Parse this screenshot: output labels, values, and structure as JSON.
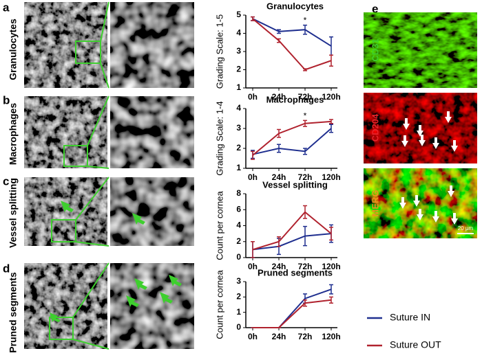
{
  "figure": {
    "panel_letters": [
      "a",
      "b",
      "c",
      "d",
      "e"
    ],
    "row_labels": [
      "Granulocytes",
      "Macrophages",
      "Vessel splitting",
      "Pruned segments"
    ],
    "stain_labels": [
      "CD31",
      "CD204",
      "MERG"
    ],
    "scale_bar": "20 µm"
  },
  "chart_data": [
    {
      "type": "line",
      "title": "Granulocytes",
      "y_label": "Grading Scale: 1-5",
      "categories": [
        "0h",
        "24h",
        "72h",
        "120h"
      ],
      "ylim": [
        1,
        5
      ],
      "yticks": [
        1,
        2,
        3,
        4,
        5
      ],
      "annotations": [
        {
          "text": "*",
          "x": "72h"
        }
      ],
      "series": [
        {
          "name": "Suture IN",
          "color": "#1f2f8f",
          "values": [
            4.8,
            4.1,
            4.2,
            3.3
          ],
          "errors": [
            0.1,
            0.1,
            0.25,
            0.5
          ]
        },
        {
          "name": "Suture OUT",
          "color": "#b0222e",
          "values": [
            4.8,
            3.6,
            2.0,
            2.5
          ],
          "errors": [
            0.1,
            0.1,
            0.05,
            0.3
          ]
        }
      ]
    },
    {
      "type": "line",
      "title": "Macrophages",
      "y_label": "Grading Scale: 1-4",
      "categories": [
        "0h",
        "24h",
        "72h",
        "120h"
      ],
      "ylim": [
        1,
        4
      ],
      "yticks": [
        1,
        2,
        3,
        4
      ],
      "annotations": [
        {
          "text": "*",
          "x": "72h"
        }
      ],
      "series": [
        {
          "name": "Suture IN",
          "color": "#1f2f8f",
          "values": [
            1.7,
            2.0,
            1.85,
            3.0
          ],
          "errors": [
            0.2,
            0.2,
            0.15,
            0.2
          ]
        },
        {
          "name": "Suture OUT",
          "color": "#b0222e",
          "values": [
            1.65,
            2.75,
            3.25,
            3.35
          ],
          "errors": [
            0.2,
            0.2,
            0.15,
            0.1
          ]
        }
      ]
    },
    {
      "type": "line",
      "title": "Vessel splitting",
      "y_label": "Count per cornea",
      "categories": [
        "0h",
        "24h",
        "72h",
        "120h"
      ],
      "ylim": [
        0,
        8
      ],
      "yticks": [
        0,
        2,
        4,
        6,
        8
      ],
      "series": [
        {
          "name": "Suture IN",
          "color": "#1f2f8f",
          "values": [
            1,
            1.4,
            2.7,
            3.0
          ],
          "errors": [
            1.0,
            1.0,
            1.2,
            1.1
          ]
        },
        {
          "name": "Suture OUT",
          "color": "#b0222e",
          "values": [
            1,
            2.0,
            5.7,
            3.0
          ],
          "errors": [
            1.0,
            0.6,
            0.8,
            0.8
          ]
        }
      ]
    },
    {
      "type": "line",
      "title": "Pruned segments",
      "y_label": "Count per cornea",
      "categories": [
        "0h",
        "24h",
        "72h",
        "120h"
      ],
      "ylim": [
        0,
        3
      ],
      "yticks": [
        0,
        1,
        2,
        3
      ],
      "series": [
        {
          "name": "Suture IN",
          "color": "#1f2f8f",
          "values": [
            0,
            0,
            1.9,
            2.5
          ],
          "errors": [
            0,
            0,
            0.3,
            0.3
          ]
        },
        {
          "name": "Suture OUT",
          "color": "#b0222e",
          "values": [
            0,
            0,
            1.6,
            1.8
          ],
          "errors": [
            0,
            0,
            0.2,
            0.2
          ]
        }
      ]
    }
  ]
}
